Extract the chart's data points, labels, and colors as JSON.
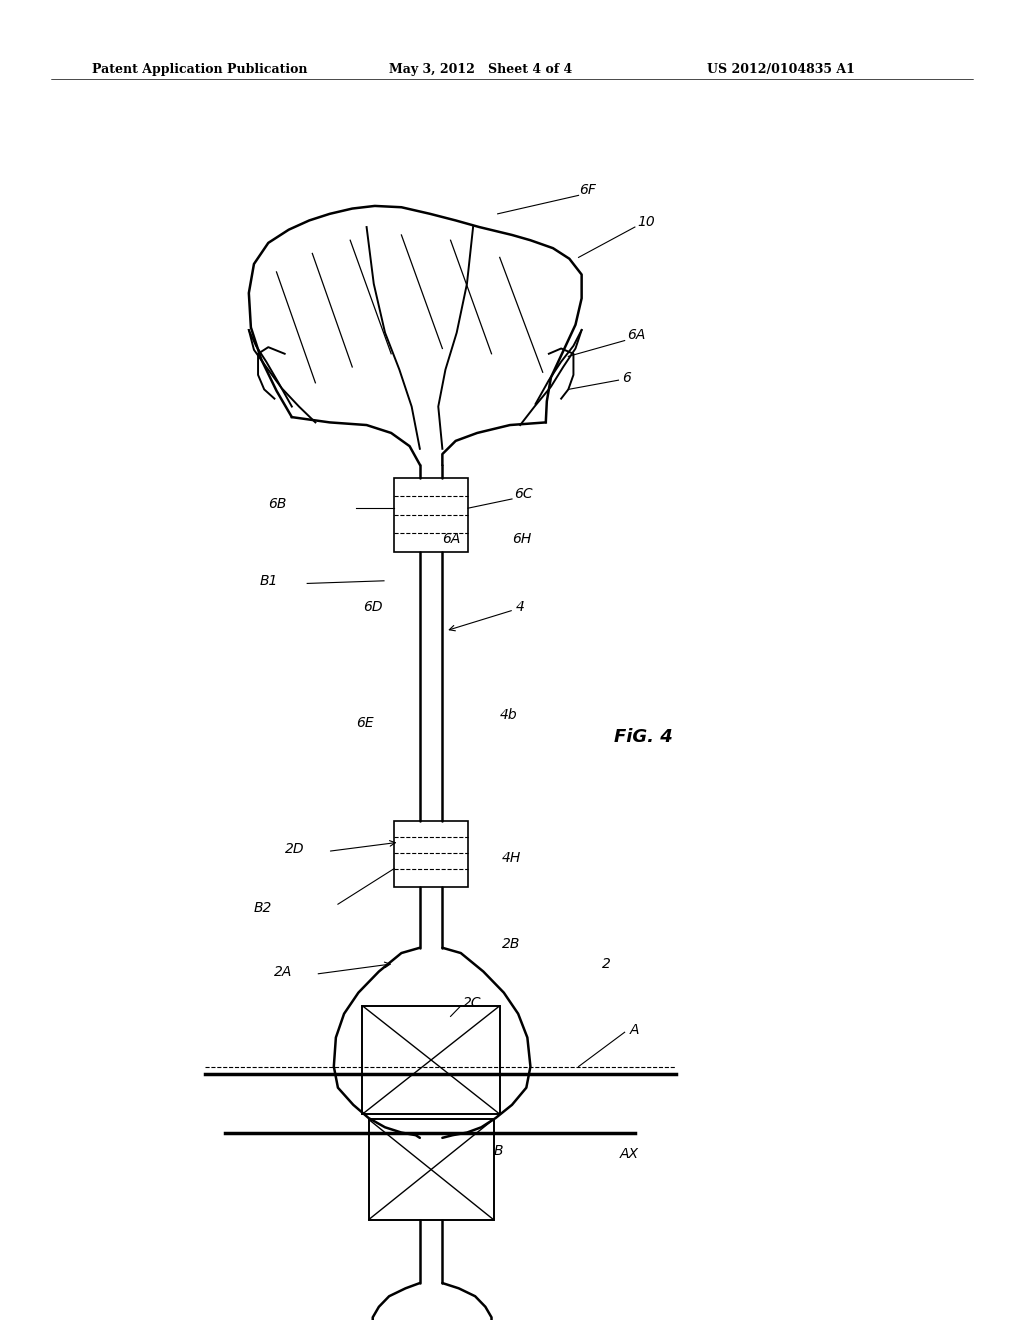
{
  "bg_color": "#ffffff",
  "header_left": "Patent Application Publication",
  "header_mid": "May 3, 2012   Sheet 4 of 4",
  "header_right": "US 2012/0104835 A1",
  "fig_label": "FiG. 4"
}
